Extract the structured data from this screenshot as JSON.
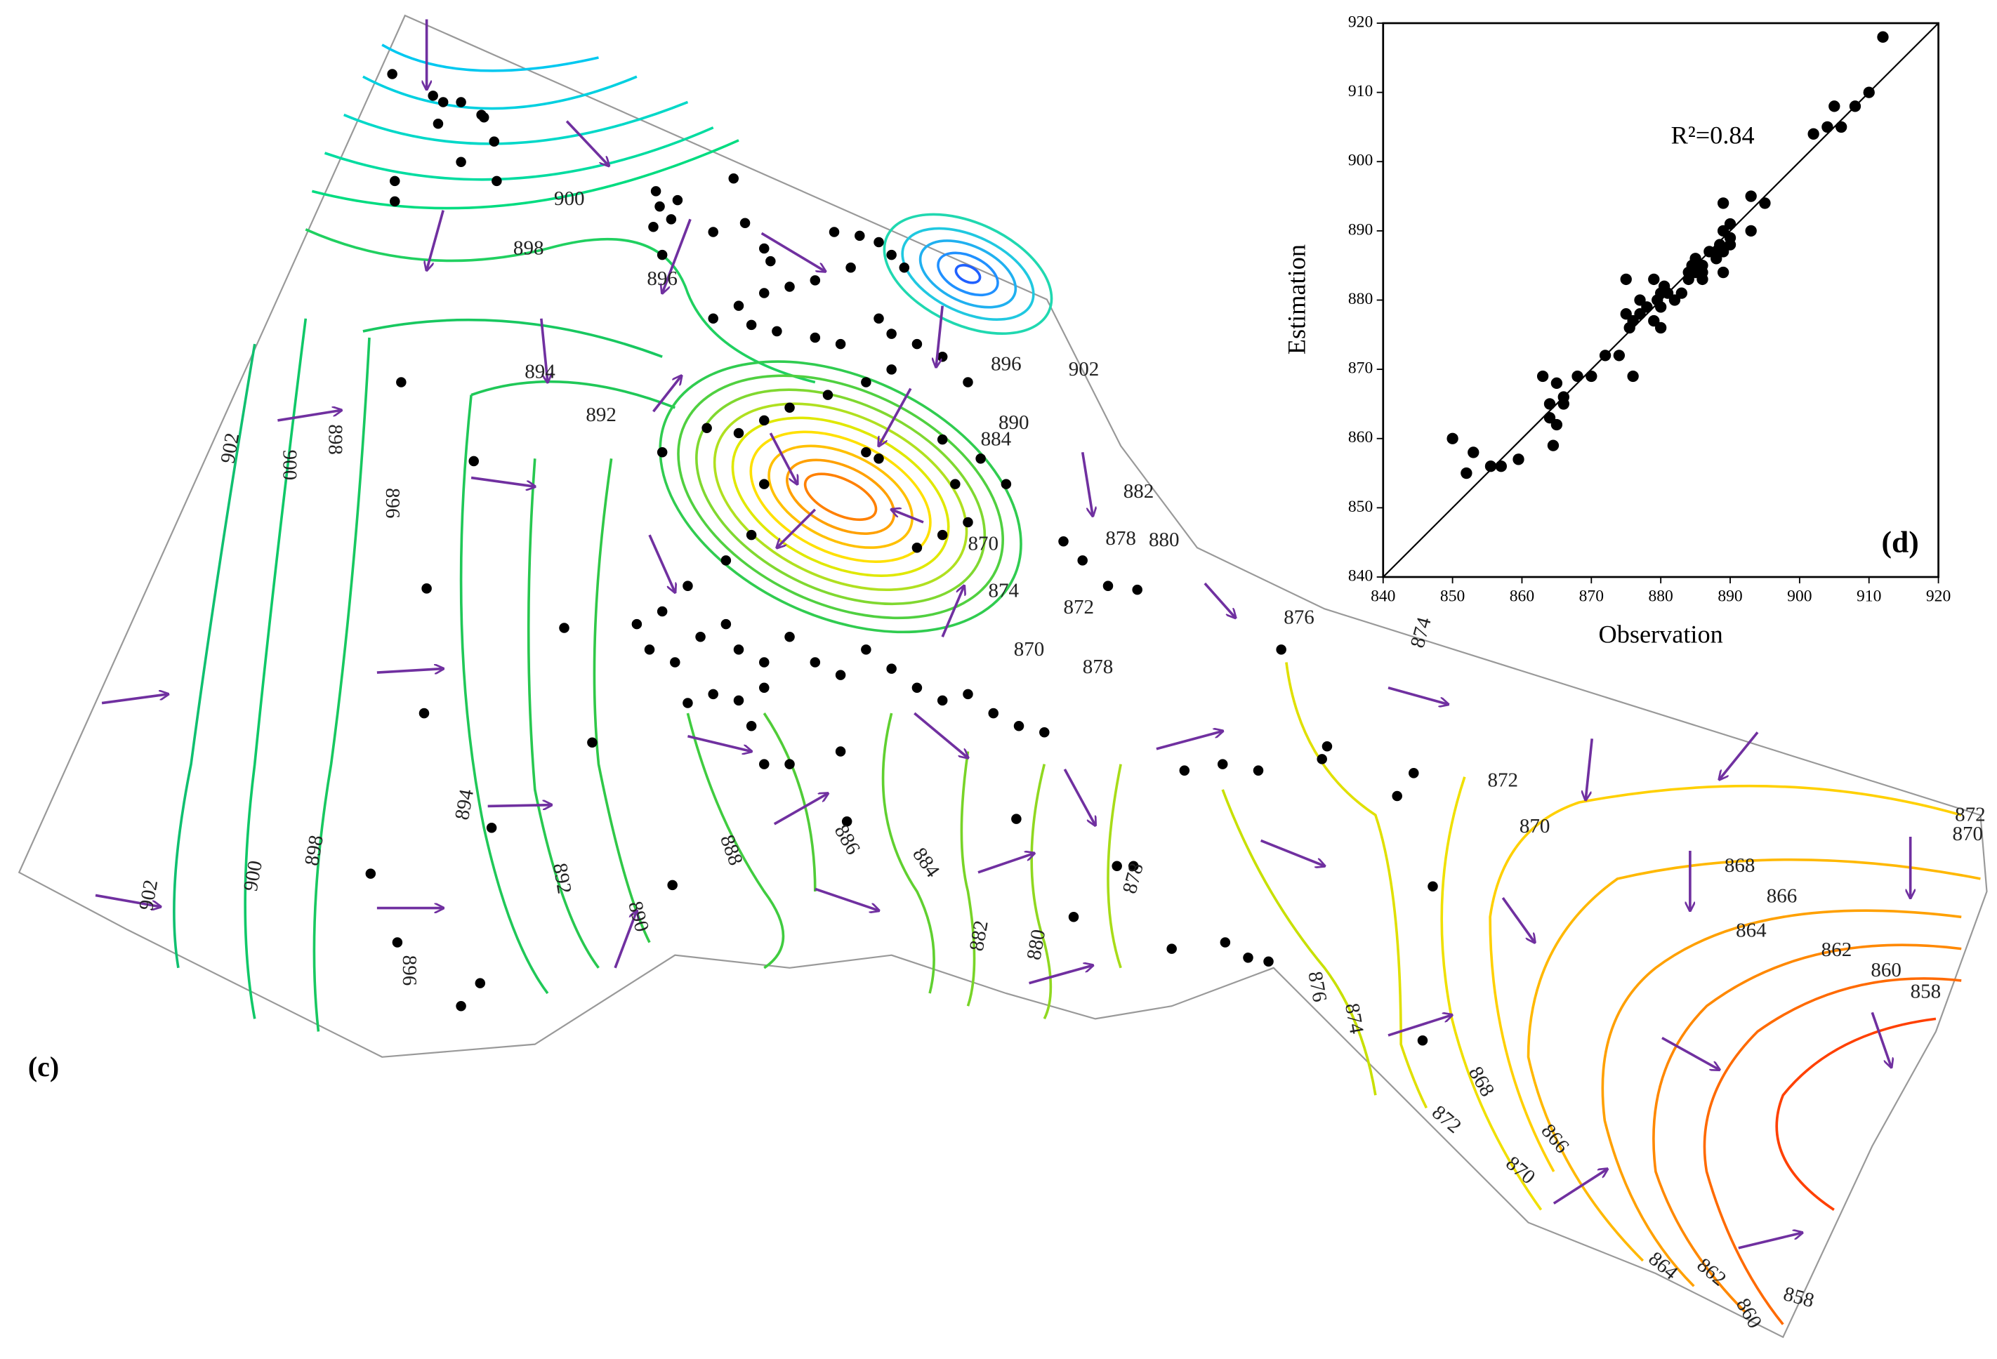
{
  "map": {
    "panel_label": "(c)",
    "contour_labels": [
      900,
      898,
      896,
      894,
      892,
      902,
      900,
      898,
      896,
      894,
      892,
      890,
      888,
      886,
      884,
      882,
      880,
      878,
      902,
      900,
      898,
      896,
      902,
      896,
      890,
      884,
      882,
      880,
      878,
      874,
      872,
      870,
      878,
      876,
      874,
      872,
      870,
      868,
      866,
      864,
      862,
      860,
      858,
      872,
      870,
      876,
      874,
      868,
      872,
      870,
      866,
      864,
      862,
      860,
      858,
      870
    ]
  },
  "chart_data": {
    "type": "scatter",
    "panel_label": "(d)",
    "annotation": "R²=0.84",
    "x_label": "Observation",
    "y_label": "Estimation",
    "color": "#000000",
    "xlim": [
      840,
      920
    ],
    "ylim": [
      840,
      920
    ],
    "xticks": [
      840,
      850,
      860,
      870,
      880,
      890,
      900,
      910,
      920
    ],
    "yticks": [
      840,
      850,
      860,
      870,
      880,
      890,
      900,
      910,
      920
    ],
    "x": [
      850,
      852,
      853,
      855.5,
      857,
      859.5,
      863,
      864,
      864,
      864.5,
      865,
      865,
      866,
      866,
      868,
      870,
      872,
      874,
      875,
      875,
      875.5,
      876,
      876,
      877,
      877,
      878,
      879,
      879,
      879.5,
      880,
      880,
      880,
      880.5,
      881,
      882,
      883,
      884,
      884,
      884.5,
      885,
      885,
      886,
      886,
      886,
      887,
      888,
      888,
      888.5,
      889,
      889,
      889,
      890,
      890,
      890,
      893,
      893,
      895,
      902,
      904,
      905,
      906,
      908,
      910,
      912,
      889
    ],
    "values": [
      860,
      855,
      858,
      856,
      856,
      857,
      869,
      865,
      863,
      859,
      868,
      862,
      866,
      865,
      869,
      869,
      872,
      872,
      878,
      883,
      876,
      869,
      877,
      880,
      878,
      879,
      883,
      877,
      880,
      876,
      879,
      881,
      882,
      881,
      880,
      881,
      883,
      884,
      885,
      886,
      884,
      885,
      883,
      884,
      887,
      886,
      887,
      888,
      887,
      890,
      884,
      889,
      891,
      888,
      890,
      895,
      894,
      904,
      905,
      908,
      905,
      908,
      910,
      918,
      894
    ]
  }
}
